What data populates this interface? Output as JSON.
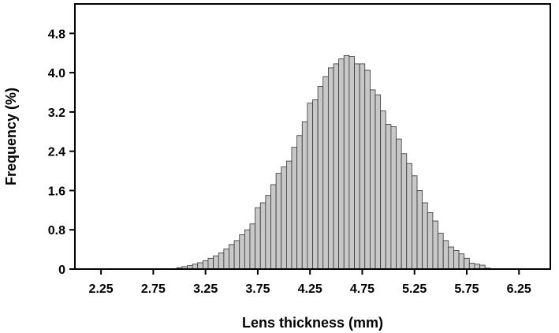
{
  "chart_data": {
    "type": "bar",
    "title": "",
    "xlabel": "Lens thickness (mm)",
    "ylabel": "Frequency (%)",
    "xlim": [
      2.0,
      6.55
    ],
    "ylim": [
      0,
      5.4
    ],
    "xticks": [
      2.25,
      2.75,
      3.25,
      3.75,
      4.25,
      4.75,
      5.25,
      5.75,
      6.25
    ],
    "xtick_labels": [
      "2.25",
      "2.75",
      "3.25",
      "3.75",
      "4.25",
      "4.75",
      "5.25",
      "5.75",
      "6.25"
    ],
    "yticks": [
      0,
      0.8,
      1.6,
      2.4,
      3.2,
      4.0,
      4.8
    ],
    "ytick_labels": [
      "0",
      "0.8",
      "1.6",
      "2.4",
      "3.2",
      "4.0",
      "4.8"
    ],
    "bin_width": 0.05,
    "x": [
      3.0,
      3.05,
      3.1,
      3.15,
      3.2,
      3.25,
      3.3,
      3.35,
      3.4,
      3.45,
      3.5,
      3.55,
      3.6,
      3.65,
      3.7,
      3.75,
      3.8,
      3.85,
      3.9,
      3.95,
      4.0,
      4.05,
      4.1,
      4.15,
      4.2,
      4.25,
      4.3,
      4.35,
      4.4,
      4.45,
      4.5,
      4.55,
      4.6,
      4.65,
      4.7,
      4.75,
      4.8,
      4.85,
      4.9,
      4.95,
      5.0,
      5.05,
      5.1,
      5.15,
      5.2,
      5.25,
      5.3,
      5.35,
      5.4,
      5.45,
      5.5,
      5.55,
      5.6,
      5.65,
      5.7,
      5.75,
      5.8,
      5.85,
      5.9,
      5.95
    ],
    "values": [
      0.03,
      0.05,
      0.07,
      0.1,
      0.13,
      0.17,
      0.22,
      0.27,
      0.33,
      0.41,
      0.5,
      0.58,
      0.7,
      0.8,
      0.92,
      1.25,
      1.35,
      1.5,
      1.72,
      1.95,
      2.08,
      2.2,
      2.48,
      2.72,
      3.0,
      3.38,
      3.45,
      3.72,
      3.92,
      4.1,
      4.18,
      4.28,
      4.35,
      4.33,
      4.18,
      4.18,
      4.05,
      3.65,
      3.55,
      3.22,
      2.95,
      2.9,
      2.65,
      2.35,
      2.15,
      1.9,
      1.6,
      1.35,
      1.15,
      0.98,
      0.73,
      0.58,
      0.45,
      0.38,
      0.31,
      0.22,
      0.12,
      0.1,
      0.08,
      0.02
    ],
    "bar_fill": "#c8c8c8",
    "bar_stroke": "#333333",
    "axis_color": "#000000",
    "grid": false,
    "legend": "none"
  }
}
